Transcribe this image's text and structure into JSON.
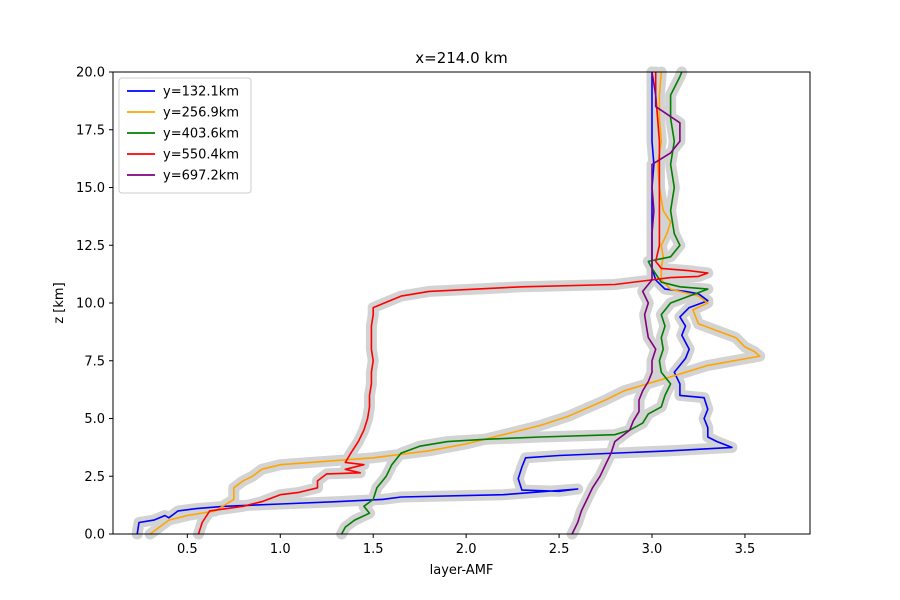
{
  "chart_data": {
    "type": "line",
    "title": "x=214.0 km",
    "xlabel": "layer-AMF",
    "ylabel": "z [km]",
    "xlim": [
      0.1,
      3.85
    ],
    "ylim": [
      0,
      20
    ],
    "xticks": [
      "0.5",
      "1.0",
      "1.5",
      "2.0",
      "2.5",
      "3.0",
      "3.5"
    ],
    "xtick_values": [
      0.5,
      1.0,
      1.5,
      2.0,
      2.5,
      3.0,
      3.5
    ],
    "yticks": [
      "0.0",
      "2.5",
      "5.0",
      "7.5",
      "10.0",
      "12.5",
      "15.0",
      "17.5",
      "20.0"
    ],
    "ytick_values": [
      0,
      2.5,
      5,
      7.5,
      10,
      12.5,
      15,
      17.5,
      20
    ],
    "grid": false,
    "legend_position": "upper left",
    "uncertainty_band_color": "#d3d3d3",
    "series": [
      {
        "name": "y=132.1km",
        "color": "#0000ff",
        "points": [
          [
            0.23,
            0
          ],
          [
            0.24,
            0.5
          ],
          [
            0.32,
            0.6
          ],
          [
            0.38,
            0.8
          ],
          [
            0.4,
            0.7
          ],
          [
            0.45,
            1.0
          ],
          [
            0.55,
            1.1
          ],
          [
            0.7,
            1.2
          ],
          [
            1.0,
            1.3
          ],
          [
            1.3,
            1.4
          ],
          [
            1.55,
            1.5
          ],
          [
            1.65,
            1.6
          ],
          [
            2.2,
            1.7
          ],
          [
            2.6,
            1.95
          ],
          [
            2.5,
            1.85
          ],
          [
            2.3,
            1.9
          ],
          [
            2.28,
            2.4
          ],
          [
            2.3,
            2.9
          ],
          [
            2.32,
            3.3
          ],
          [
            2.5,
            3.4
          ],
          [
            3.1,
            3.6
          ],
          [
            3.43,
            3.75
          ],
          [
            3.35,
            4.0
          ],
          [
            3.3,
            4.2
          ],
          [
            3.3,
            4.6
          ],
          [
            3.28,
            5.0
          ],
          [
            3.3,
            5.4
          ],
          [
            3.28,
            5.9
          ],
          [
            3.15,
            6.0
          ],
          [
            3.15,
            6.5
          ],
          [
            3.12,
            7.0
          ],
          [
            3.15,
            7.3
          ],
          [
            3.18,
            7.6
          ],
          [
            3.2,
            8.0
          ],
          [
            3.16,
            8.6
          ],
          [
            3.18,
            9.0
          ],
          [
            3.15,
            9.4
          ],
          [
            3.2,
            9.8
          ],
          [
            3.3,
            10.1
          ],
          [
            3.25,
            10.4
          ],
          [
            3.18,
            10.5
          ],
          [
            3.07,
            10.6
          ],
          [
            3.02,
            11.0
          ],
          [
            3.0,
            11.5
          ],
          [
            3.0,
            12.0
          ],
          [
            3.0,
            13.0
          ],
          [
            3.0,
            14.0
          ],
          [
            3.0,
            15.0
          ],
          [
            3.01,
            16.0
          ],
          [
            3.0,
            17.0
          ],
          [
            3.0,
            18.0
          ],
          [
            3.0,
            19.0
          ],
          [
            3.0,
            20.0
          ]
        ]
      },
      {
        "name": "y=256.9km",
        "color": "#ffa500",
        "points": [
          [
            0.3,
            0
          ],
          [
            0.35,
            0.3
          ],
          [
            0.4,
            0.6
          ],
          [
            0.5,
            0.8
          ],
          [
            0.65,
            1.0
          ],
          [
            0.75,
            1.5
          ],
          [
            0.75,
            2.0
          ],
          [
            0.8,
            2.3
          ],
          [
            0.85,
            2.5
          ],
          [
            0.9,
            2.8
          ],
          [
            1.0,
            3.0
          ],
          [
            1.5,
            3.3
          ],
          [
            1.8,
            3.6
          ],
          [
            2.0,
            3.9
          ],
          [
            2.2,
            4.3
          ],
          [
            2.4,
            4.7
          ],
          [
            2.55,
            5.1
          ],
          [
            2.75,
            5.8
          ],
          [
            2.85,
            6.2
          ],
          [
            3.1,
            6.8
          ],
          [
            3.3,
            7.3
          ],
          [
            3.58,
            7.7
          ],
          [
            3.55,
            7.9
          ],
          [
            3.5,
            8.1
          ],
          [
            3.45,
            8.5
          ],
          [
            3.35,
            8.8
          ],
          [
            3.25,
            9.1
          ],
          [
            3.22,
            9.7
          ],
          [
            3.3,
            10.0
          ],
          [
            3.25,
            10.3
          ],
          [
            3.1,
            10.6
          ],
          [
            3.05,
            11.0
          ],
          [
            3.05,
            11.5
          ],
          [
            3.06,
            12.0
          ],
          [
            3.05,
            12.5
          ],
          [
            3.08,
            13.0
          ],
          [
            3.1,
            13.5
          ],
          [
            3.06,
            14.0
          ],
          [
            3.04,
            15.0
          ],
          [
            3.03,
            16.0
          ],
          [
            3.05,
            17.0
          ],
          [
            3.04,
            18.0
          ],
          [
            3.04,
            19.0
          ],
          [
            3.05,
            20.0
          ]
        ]
      },
      {
        "name": "y=403.6km",
        "color": "#008000",
        "points": [
          [
            1.33,
            0
          ],
          [
            1.35,
            0.3
          ],
          [
            1.4,
            0.6
          ],
          [
            1.48,
            0.9
          ],
          [
            1.45,
            1.2
          ],
          [
            1.5,
            1.5
          ],
          [
            1.52,
            2.0
          ],
          [
            1.57,
            2.5
          ],
          [
            1.6,
            3.0
          ],
          [
            1.65,
            3.5
          ],
          [
            1.75,
            3.8
          ],
          [
            1.9,
            4.0
          ],
          [
            2.1,
            4.1
          ],
          [
            2.4,
            4.2
          ],
          [
            2.8,
            4.3
          ],
          [
            2.88,
            4.5
          ],
          [
            2.95,
            4.8
          ],
          [
            2.98,
            5.2
          ],
          [
            3.05,
            5.5
          ],
          [
            3.07,
            6.0
          ],
          [
            3.1,
            6.5
          ],
          [
            3.05,
            7.0
          ],
          [
            3.04,
            7.5
          ],
          [
            3.06,
            8.0
          ],
          [
            3.05,
            8.5
          ],
          [
            3.07,
            9.0
          ],
          [
            3.05,
            9.5
          ],
          [
            3.1,
            10.0
          ],
          [
            3.3,
            10.6
          ],
          [
            3.15,
            10.7
          ],
          [
            3.05,
            10.9
          ],
          [
            3.0,
            11.5
          ],
          [
            2.98,
            11.8
          ],
          [
            3.1,
            12.0
          ],
          [
            3.15,
            12.5
          ],
          [
            3.12,
            13.0
          ],
          [
            3.1,
            14.0
          ],
          [
            3.12,
            15.0
          ],
          [
            3.1,
            16.0
          ],
          [
            3.12,
            17.0
          ],
          [
            3.1,
            18.0
          ],
          [
            3.1,
            19.0
          ],
          [
            3.15,
            19.8
          ],
          [
            3.16,
            20.0
          ]
        ]
      },
      {
        "name": "y=550.4km",
        "color": "#ff0000",
        "points": [
          [
            0.56,
            0
          ],
          [
            0.58,
            0.5
          ],
          [
            0.62,
            1.0
          ],
          [
            0.8,
            1.2
          ],
          [
            0.9,
            1.4
          ],
          [
            1.0,
            1.7
          ],
          [
            1.1,
            1.8
          ],
          [
            1.2,
            2.0
          ],
          [
            1.2,
            2.3
          ],
          [
            1.25,
            2.6
          ],
          [
            1.43,
            2.65
          ],
          [
            1.35,
            2.8
          ],
          [
            1.45,
            3.0
          ],
          [
            1.35,
            3.1
          ],
          [
            1.38,
            3.5
          ],
          [
            1.42,
            4.0
          ],
          [
            1.45,
            4.5
          ],
          [
            1.47,
            5.0
          ],
          [
            1.48,
            5.5
          ],
          [
            1.48,
            6.0
          ],
          [
            1.49,
            6.5
          ],
          [
            1.49,
            7.0
          ],
          [
            1.5,
            7.5
          ],
          [
            1.49,
            8.0
          ],
          [
            1.49,
            8.5
          ],
          [
            1.49,
            9.0
          ],
          [
            1.5,
            9.5
          ],
          [
            1.5,
            9.8
          ],
          [
            1.65,
            10.3
          ],
          [
            1.8,
            10.5
          ],
          [
            2.3,
            10.7
          ],
          [
            2.8,
            10.8
          ],
          [
            3.1,
            11.1
          ],
          [
            3.25,
            11.15
          ],
          [
            3.3,
            11.3
          ],
          [
            3.2,
            11.4
          ],
          [
            3.05,
            11.5
          ],
          [
            3.02,
            11.8
          ],
          [
            3.04,
            12.5
          ],
          [
            3.04,
            13.0
          ],
          [
            3.04,
            14.0
          ],
          [
            3.04,
            15.0
          ],
          [
            3.04,
            16.0
          ],
          [
            3.04,
            17.0
          ],
          [
            3.03,
            18.0
          ],
          [
            3.02,
            19.0
          ],
          [
            3.02,
            20.0
          ]
        ]
      },
      {
        "name": "y=697.2km",
        "color": "#800080",
        "points": [
          [
            2.57,
            0
          ],
          [
            2.6,
            0.5
          ],
          [
            2.62,
            1.0
          ],
          [
            2.65,
            1.5
          ],
          [
            2.68,
            2.0
          ],
          [
            2.72,
            2.5
          ],
          [
            2.75,
            3.0
          ],
          [
            2.78,
            3.5
          ],
          [
            2.8,
            4.0
          ],
          [
            2.88,
            4.5
          ],
          [
            2.9,
            4.9
          ],
          [
            2.93,
            5.3
          ],
          [
            2.93,
            5.8
          ],
          [
            2.95,
            6.2
          ],
          [
            2.98,
            6.6
          ],
          [
            3.0,
            7.0
          ],
          [
            3.0,
            7.5
          ],
          [
            3.02,
            8.0
          ],
          [
            2.98,
            8.5
          ],
          [
            2.97,
            9.0
          ],
          [
            2.96,
            9.5
          ],
          [
            2.98,
            10.0
          ],
          [
            2.95,
            10.5
          ],
          [
            3.0,
            11.0
          ],
          [
            3.0,
            11.5
          ],
          [
            3.0,
            12.0
          ],
          [
            3.0,
            13.0
          ],
          [
            3.01,
            14.0
          ],
          [
            3.0,
            15.0
          ],
          [
            3.0,
            16.0
          ],
          [
            3.1,
            16.5
          ],
          [
            3.15,
            17.0
          ],
          [
            3.15,
            17.8
          ],
          [
            3.02,
            18.5
          ],
          [
            3.02,
            19.0
          ],
          [
            3.0,
            20.0
          ]
        ]
      }
    ]
  }
}
